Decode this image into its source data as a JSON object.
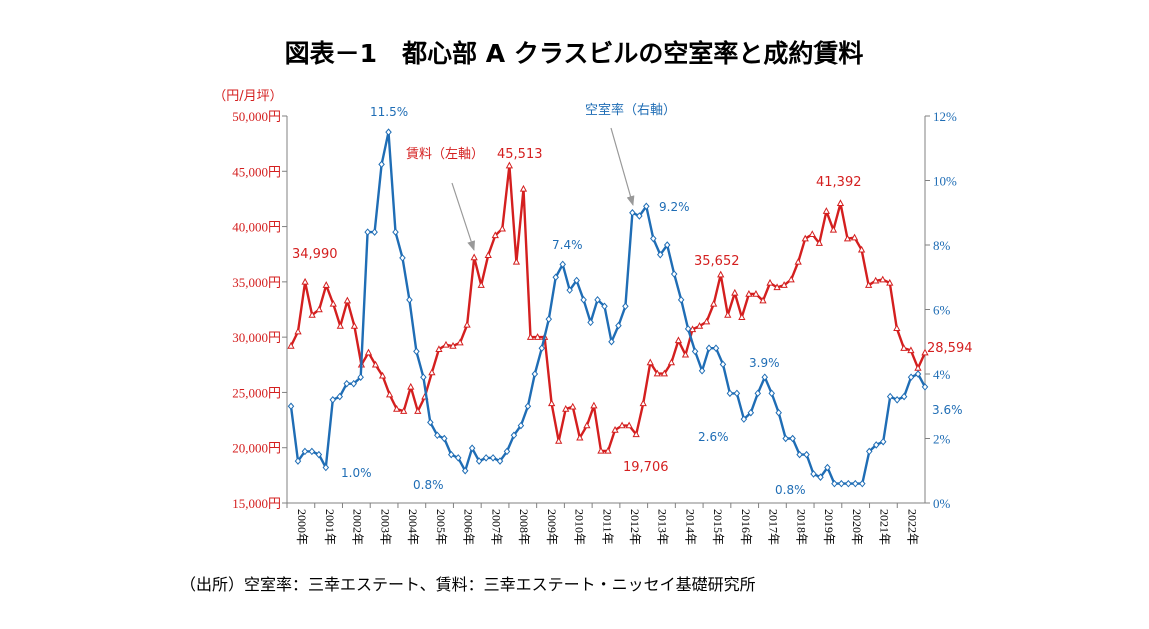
{
  "chart_data": {
    "type": "line",
    "title": "図表－1　都心部 A クラスビルの空室率と成約賃料",
    "left_axis": {
      "unit_label": "（円/月坪）",
      "range": [
        15000,
        50000
      ],
      "ticks": [
        "15,000円",
        "20,000円",
        "25,000円",
        "30,000円",
        "35,000円",
        "40,000円",
        "45,000円",
        "50,000円"
      ],
      "tick_values": [
        15000,
        20000,
        25000,
        30000,
        35000,
        40000,
        45000,
        50000
      ],
      "color": "#d41f1f"
    },
    "right_axis": {
      "range": [
        0,
        12
      ],
      "ticks": [
        "0%",
        "2%",
        "4%",
        "6%",
        "8%",
        "10%",
        "12%"
      ],
      "tick_values": [
        0,
        2,
        4,
        6,
        8,
        10,
        12
      ],
      "color": "#1f6db5"
    },
    "x_axis": {
      "start_year": 2000,
      "end_year": 2023,
      "tick_labels": [
        "2000年",
        "2001年",
        "2002年",
        "2003年",
        "2004年",
        "2005年",
        "2006年",
        "2007年",
        "2008年",
        "2009年",
        "2010年",
        "2011年",
        "2012年",
        "2013年",
        "2014年",
        "2015年",
        "2016年",
        "2017年",
        "2018年",
        "2019年",
        "2020年",
        "2021年",
        "2022年"
      ]
    },
    "series": [
      {
        "name": "賃料（左軸）",
        "axis": "left",
        "color": "#d41f1f",
        "marker": "triangle",
        "values": [
          29200,
          30500,
          34990,
          32000,
          32500,
          34700,
          33000,
          31000,
          33300,
          31000,
          27500,
          28600,
          27500,
          26500,
          24800,
          23500,
          23300,
          25500,
          23300,
          24600,
          26800,
          28900,
          29300,
          29200,
          29500,
          31100,
          37200,
          34700,
          37400,
          39200,
          39800,
          45513,
          36800,
          43400,
          30000,
          30000,
          30000,
          24000,
          20600,
          23500,
          23700,
          20900,
          22000,
          23800,
          19706,
          19706,
          21600,
          22000,
          22000,
          21200,
          24000,
          27700,
          26700,
          26700,
          27700,
          29700,
          28400,
          30700,
          31000,
          31400,
          33000,
          35652,
          32000,
          34000,
          31800,
          33900,
          33900,
          33300,
          34900,
          34500,
          34700,
          35200,
          36800,
          38900,
          39300,
          38500,
          41392,
          39700,
          42100,
          38900,
          39000,
          37900,
          34700,
          35100,
          35200,
          34900,
          30800,
          29000,
          28800,
          27200,
          28594
        ],
        "labels": [
          {
            "text": "34,990"
          },
          {
            "text": "45,513"
          },
          {
            "text": "19,706"
          },
          {
            "text": "35,652"
          },
          {
            "text": "41,392"
          },
          {
            "text": "28,594"
          }
        ]
      },
      {
        "name": "空室率（右軸）",
        "axis": "right",
        "color": "#1f6db5",
        "marker": "diamond",
        "values": [
          3.0,
          1.3,
          1.6,
          1.6,
          1.5,
          1.1,
          3.2,
          3.3,
          3.7,
          3.7,
          3.9,
          8.4,
          8.4,
          10.5,
          11.5,
          8.4,
          7.6,
          6.3,
          4.7,
          3.9,
          2.5,
          2.1,
          2.0,
          1.5,
          1.4,
          1.0,
          1.7,
          1.3,
          1.4,
          1.4,
          1.3,
          1.6,
          2.1,
          2.4,
          3.0,
          4.0,
          4.8,
          5.7,
          7.0,
          7.4,
          6.6,
          6.9,
          6.3,
          5.6,
          6.3,
          6.1,
          5.0,
          5.5,
          6.1,
          9.0,
          8.9,
          9.2,
          8.2,
          7.7,
          8.0,
          7.1,
          6.3,
          5.4,
          4.7,
          4.1,
          4.8,
          4.8,
          4.3,
          3.4,
          3.4,
          2.6,
          2.8,
          3.4,
          3.9,
          3.4,
          2.8,
          2.0,
          2.0,
          1.5,
          1.5,
          0.9,
          0.8,
          1.1,
          0.6,
          0.6,
          0.6,
          0.6,
          0.6,
          1.6,
          1.8,
          1.9,
          3.3,
          3.2,
          3.3,
          3.9,
          4.0,
          3.6
        ],
        "labels": [
          {
            "text": "11.5%"
          },
          {
            "text": "1.0%"
          },
          {
            "text": "0.8%"
          },
          {
            "text": "7.4%"
          },
          {
            "text": "9.2%"
          },
          {
            "text": "2.6%"
          },
          {
            "text": "3.9%"
          },
          {
            "text": "0.8%"
          },
          {
            "text": "3.6%"
          }
        ]
      }
    ],
    "annotations": [
      {
        "text": "賃料（左軸）",
        "color": "#d41f1f"
      },
      {
        "text": "空室率（右軸）",
        "color": "#1f6db5"
      }
    ],
    "source": "（出所）空室率：三幸エステート、賃料：三幸エステート・ニッセイ基礎研究所"
  }
}
